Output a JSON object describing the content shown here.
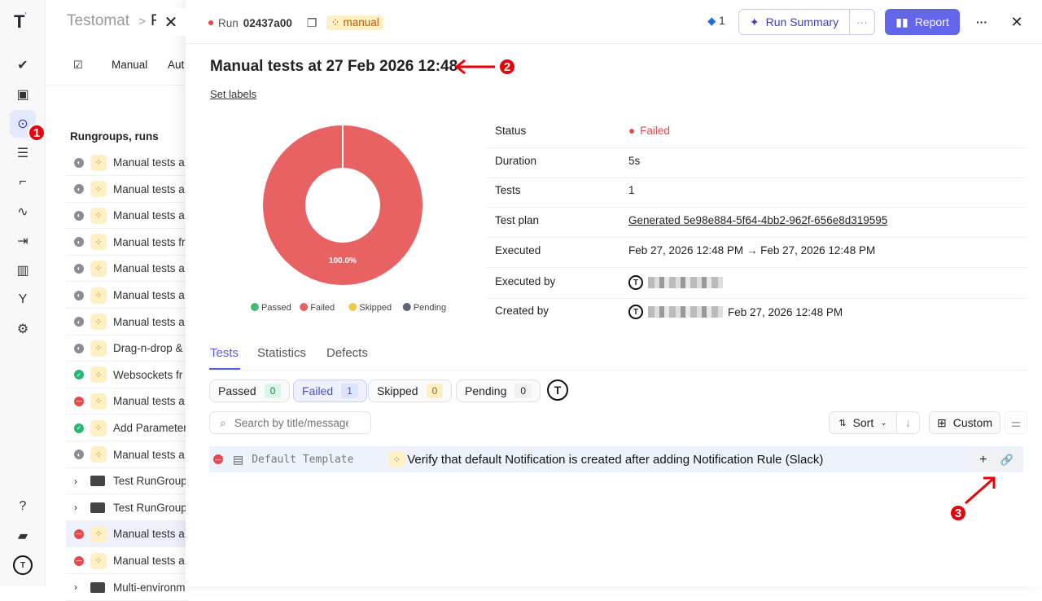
{
  "rail": {
    "items": [
      {
        "icon": "check-icon"
      },
      {
        "icon": "briefcase-check-icon"
      },
      {
        "icon": "play-circle-icon",
        "active": true
      },
      {
        "icon": "list-check-icon"
      },
      {
        "icon": "stairs-icon"
      },
      {
        "icon": "pulse-icon"
      },
      {
        "icon": "import-icon"
      },
      {
        "icon": "chart-icon"
      },
      {
        "icon": "branch-icon"
      },
      {
        "icon": "gear-icon"
      }
    ],
    "bottom": [
      {
        "icon": "help-icon"
      },
      {
        "icon": "folders-icon"
      },
      {
        "icon": "avatar-icon"
      }
    ]
  },
  "mid": {
    "breadcrumb": "Testomat",
    "breadcrumb_sep": ">",
    "breadcrumb_next": "F",
    "tabs": [
      "Manual",
      "Aut"
    ],
    "section_title": "Rungroups, runs",
    "rows": [
      {
        "status": "pending",
        "type": "manual",
        "title": "Manual tests a"
      },
      {
        "status": "pending",
        "type": "manual",
        "title": "Manual tests a"
      },
      {
        "status": "pending",
        "type": "manual",
        "title": "Manual tests a"
      },
      {
        "status": "pending",
        "type": "manual",
        "title": "Manual tests fr"
      },
      {
        "status": "pending",
        "type": "manual",
        "title": "Manual tests a"
      },
      {
        "status": "pending",
        "type": "manual",
        "title": "Manual tests a"
      },
      {
        "status": "pending",
        "type": "manual",
        "title": "Manual tests a"
      },
      {
        "status": "pending",
        "type": "manual",
        "title": "Drag-n-drop &"
      },
      {
        "status": "passed",
        "type": "manual",
        "title": "Websockets  fr"
      },
      {
        "status": "failed",
        "type": "manual",
        "title": "Manual tests a"
      },
      {
        "status": "passed",
        "type": "manual",
        "title": "Add Parameter"
      },
      {
        "status": "pending",
        "type": "manual",
        "title": "Manual tests a"
      },
      {
        "status": "folder",
        "type": "folder",
        "title": "Test RunGroup"
      },
      {
        "status": "folder",
        "type": "folder",
        "title": "Test RunGroup"
      },
      {
        "status": "failed",
        "type": "manual",
        "title": "Manual tests a",
        "selected": true
      },
      {
        "status": "failed",
        "type": "manual",
        "title": "Manual tests a"
      },
      {
        "status": "folder",
        "type": "folder",
        "title": "Multi-environm"
      }
    ]
  },
  "header": {
    "run_label": "Run",
    "run_id": "02437a00",
    "label_badge": "manual",
    "jira_count": "1",
    "run_summary": "Run Summary",
    "report": "Report"
  },
  "run": {
    "title": "Manual tests at 27 Feb 2026 12:48",
    "set_labels": "Set labels"
  },
  "chart_data": {
    "type": "pie",
    "donut": true,
    "categories": [
      "Passed",
      "Failed",
      "Skipped",
      "Pending"
    ],
    "values": [
      0,
      1,
      0,
      0
    ],
    "colors": [
      "#3dbb78",
      "#e86163",
      "#f0c84a",
      "#606472"
    ],
    "data_labels": [
      "100.0%"
    ],
    "legend": "bottom"
  },
  "details": [
    {
      "label": "Status",
      "value": "Failed"
    },
    {
      "label": "Duration",
      "value": "5s"
    },
    {
      "label": "Tests",
      "value": "1"
    },
    {
      "label": "Test plan",
      "value": "Generated 5e98e884-5f64-4bb2-962f-656e8d319595"
    },
    {
      "label": "Executed",
      "value": "Feb 27, 2026 12:48 PM → Feb 27, 2026 12:48 PM"
    },
    {
      "label": "Executed by",
      "value": ""
    },
    {
      "label": "Created by",
      "value": "Feb 27, 2026 12:48 PM"
    }
  ],
  "tabs": [
    "Tests",
    "Statistics",
    "Defects"
  ],
  "filters": [
    {
      "label": "Passed",
      "count": "0"
    },
    {
      "label": "Failed",
      "count": "1"
    },
    {
      "label": "Skipped",
      "count": "0"
    },
    {
      "label": "Pending",
      "count": "0"
    }
  ],
  "search": {
    "placeholder": "Search by title/message"
  },
  "sort": {
    "label": "Sort"
  },
  "view": {
    "label": "Custom"
  },
  "tests": [
    {
      "status": "failed",
      "template": "Default Template",
      "title": "Verify that default Notification is created after adding Notification Rule (Slack)"
    }
  ],
  "annotations": [
    "1",
    "2",
    "3"
  ],
  "colors": {
    "accent": "#5b5fe8",
    "failed": "#e5484d",
    "manual_badge": "#fdf0c4"
  }
}
